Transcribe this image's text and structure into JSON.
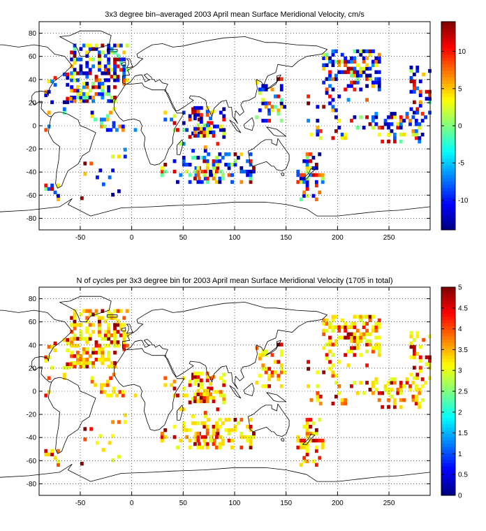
{
  "chart_data": [
    {
      "type": "heatmap",
      "title": "3x3 degree bin–averaged 2003 April mean Surface Meridional Velocity, cm/s",
      "xlabel": "",
      "ylabel": "",
      "xlim": [
        -90,
        290
      ],
      "ylim": [
        -90,
        90
      ],
      "xticks": [
        -50,
        0,
        50,
        100,
        150,
        200,
        250
      ],
      "yticks": [
        80,
        60,
        40,
        20,
        0,
        -20,
        -40,
        -60,
        -80
      ],
      "grid": true,
      "grid_style": "dotted",
      "bin_size_deg": 3,
      "colorbar": {
        "min": -14,
        "max": 14,
        "ticks": [
          10,
          5,
          0,
          -5,
          -10
        ],
        "colormap": "jet",
        "placement": "right"
      },
      "seed": 11,
      "regions": [
        {
          "lon": [
            -60,
            -5
          ],
          "lat": [
            20,
            70
          ],
          "density": 0.55
        },
        {
          "lon": [
            -85,
            -60
          ],
          "lat": [
            -5,
            45
          ],
          "density": 0.25
        },
        {
          "lon": [
            -40,
            10
          ],
          "lat": [
            -5,
            15
          ],
          "density": 0.3
        },
        {
          "lon": [
            -85,
            -70
          ],
          "lat": [
            -65,
            -50
          ],
          "density": 0.3
        },
        {
          "lon": [
            -50,
            -5
          ],
          "lat": [
            -70,
            -20
          ],
          "density": 0.06
        },
        {
          "lon": [
            25,
            90
          ],
          "lat": [
            -50,
            15
          ],
          "density": 0.18
        },
        {
          "lon": [
            60,
            120
          ],
          "lat": [
            -50,
            -25
          ],
          "density": 0.35
        },
        {
          "lon": [
            60,
            80
          ],
          "lat": [
            -10,
            15
          ],
          "density": 0.4
        },
        {
          "lon": [
            120,
            150
          ],
          "lat": [
            0,
            40
          ],
          "density": 0.25
        },
        {
          "lon": [
            160,
            185
          ],
          "lat": [
            -65,
            -25
          ],
          "density": 0.3
        },
        {
          "lon": [
            185,
            240
          ],
          "lat": [
            30,
            65
          ],
          "density": 0.45
        },
        {
          "lon": [
            170,
            230
          ],
          "lat": [
            -15,
            30
          ],
          "density": 0.15
        },
        {
          "lon": [
            230,
            285
          ],
          "lat": [
            -15,
            10
          ],
          "density": 0.25
        },
        {
          "lon": [
            270,
            290
          ],
          "lat": [
            10,
            50
          ],
          "density": 0.4
        }
      ]
    },
    {
      "type": "heatmap",
      "title": "N of cycles per 3x3 degree bin for 2003 April mean Surface Meridional Velocity (1705 in total)",
      "xlabel": "",
      "ylabel": "",
      "xlim": [
        -90,
        290
      ],
      "ylim": [
        -90,
        90
      ],
      "xticks": [
        -50,
        0,
        50,
        100,
        150,
        200,
        250
      ],
      "yticks": [
        80,
        60,
        40,
        20,
        0,
        -20,
        -40,
        -60,
        -80
      ],
      "grid": true,
      "grid_style": "dotted",
      "bin_size_deg": 3,
      "colorbar": {
        "min": 0,
        "max": 5,
        "ticks": [
          5,
          4.5,
          4,
          3.5,
          3,
          2.5,
          2,
          1.5,
          1,
          0.5,
          0
        ],
        "colormap": "jet",
        "placement": "right"
      },
      "seed": 11,
      "regions": [
        {
          "lon": [
            -60,
            -5
          ],
          "lat": [
            20,
            70
          ],
          "density": 0.55
        },
        {
          "lon": [
            -85,
            -60
          ],
          "lat": [
            -5,
            45
          ],
          "density": 0.25
        },
        {
          "lon": [
            -40,
            10
          ],
          "lat": [
            -5,
            15
          ],
          "density": 0.3
        },
        {
          "lon": [
            -85,
            -70
          ],
          "lat": [
            -65,
            -50
          ],
          "density": 0.3
        },
        {
          "lon": [
            -50,
            -5
          ],
          "lat": [
            -70,
            -20
          ],
          "density": 0.06
        },
        {
          "lon": [
            25,
            90
          ],
          "lat": [
            -50,
            15
          ],
          "density": 0.18
        },
        {
          "lon": [
            60,
            120
          ],
          "lat": [
            -50,
            -25
          ],
          "density": 0.35
        },
        {
          "lon": [
            60,
            80
          ],
          "lat": [
            -10,
            15
          ],
          "density": 0.4
        },
        {
          "lon": [
            120,
            150
          ],
          "lat": [
            0,
            40
          ],
          "density": 0.25
        },
        {
          "lon": [
            160,
            185
          ],
          "lat": [
            -65,
            -25
          ],
          "density": 0.3
        },
        {
          "lon": [
            185,
            240
          ],
          "lat": [
            30,
            65
          ],
          "density": 0.45
        },
        {
          "lon": [
            170,
            230
          ],
          "lat": [
            -15,
            30
          ],
          "density": 0.15
        },
        {
          "lon": [
            230,
            285
          ],
          "lat": [
            -15,
            10
          ],
          "density": 0.25
        },
        {
          "lon": [
            270,
            290
          ],
          "lat": [
            10,
            50
          ],
          "density": 0.4
        }
      ]
    }
  ],
  "coastlines": [
    [
      [
        -168,
        66
      ],
      [
        -160,
        70
      ],
      [
        -140,
        70
      ],
      [
        -125,
        70
      ],
      [
        -110,
        68
      ],
      [
        -95,
        70
      ],
      [
        -82,
        68
      ],
      [
        -75,
        62
      ],
      [
        -65,
        60
      ],
      [
        -58,
        52
      ],
      [
        -66,
        45
      ],
      [
        -70,
        42
      ],
      [
        -76,
        38
      ],
      [
        -80,
        32
      ],
      [
        -81,
        26
      ],
      [
        -82,
        29
      ],
      [
        -88,
        30
      ],
      [
        -94,
        29
      ],
      [
        -97,
        26
      ],
      [
        -97,
        21
      ],
      [
        -94,
        18
      ],
      [
        -90,
        21
      ],
      [
        -87,
        21
      ],
      [
        -88,
        15
      ],
      [
        -84,
        11
      ],
      [
        -80,
        8
      ],
      [
        -78,
        8
      ]
    ],
    [
      [
        -78,
        8
      ],
      [
        -75,
        11
      ],
      [
        -70,
        12
      ],
      [
        -62,
        10
      ],
      [
        -52,
        5
      ],
      [
        -50,
        0
      ],
      [
        -44,
        -2
      ],
      [
        -35,
        -6
      ],
      [
        -38,
        -13
      ],
      [
        -41,
        -22
      ],
      [
        -48,
        -26
      ],
      [
        -52,
        -33
      ],
      [
        -57,
        -36
      ],
      [
        -62,
        -39
      ],
      [
        -65,
        -45
      ],
      [
        -68,
        -52
      ],
      [
        -72,
        -54
      ],
      [
        -74,
        -50
      ],
      [
        -73,
        -40
      ],
      [
        -71,
        -30
      ],
      [
        -70,
        -18
      ],
      [
        -76,
        -14
      ],
      [
        -81,
        -6
      ],
      [
        -80,
        0
      ],
      [
        -79,
        5
      ],
      [
        -78,
        8
      ]
    ],
    [
      [
        -50,
        60
      ],
      [
        -44,
        60
      ],
      [
        -40,
        65
      ],
      [
        -22,
        70
      ],
      [
        -20,
        78
      ],
      [
        -30,
        82
      ],
      [
        -50,
        82
      ],
      [
        -60,
        78
      ],
      [
        -70,
        77
      ],
      [
        -55,
        70
      ],
      [
        -52,
        65
      ],
      [
        -50,
        60
      ]
    ],
    [
      [
        -17,
        21
      ],
      [
        -17,
        14
      ],
      [
        -15,
        11
      ],
      [
        -12,
        7
      ],
      [
        -8,
        4
      ],
      [
        -4,
        5
      ],
      [
        2,
        6
      ],
      [
        8,
        4
      ],
      [
        10,
        0
      ],
      [
        9,
        -4
      ],
      [
        13,
        -10
      ],
      [
        12,
        -17
      ],
      [
        15,
        -26
      ],
      [
        18,
        -33
      ],
      [
        22,
        -34
      ],
      [
        27,
        -33
      ],
      [
        32,
        -29
      ],
      [
        36,
        -20
      ],
      [
        40,
        -15
      ],
      [
        40,
        -10
      ],
      [
        42,
        -2
      ],
      [
        51,
        11
      ],
      [
        44,
        11
      ],
      [
        40,
        16
      ],
      [
        37,
        22
      ],
      [
        34,
        28
      ],
      [
        33,
        31
      ],
      [
        30,
        31
      ],
      [
        20,
        31
      ],
      [
        12,
        34
      ],
      [
        10,
        37
      ],
      [
        0,
        36
      ],
      [
        -6,
        36
      ],
      [
        -10,
        30
      ],
      [
        -17,
        21
      ]
    ],
    [
      [
        -9,
        37
      ],
      [
        -9,
        43
      ],
      [
        -2,
        44
      ],
      [
        -4,
        48
      ],
      [
        2,
        51
      ],
      [
        5,
        53
      ],
      [
        8,
        56
      ],
      [
        11,
        58
      ],
      [
        6,
        59
      ],
      [
        5,
        62
      ],
      [
        12,
        66
      ],
      [
        20,
        70
      ],
      [
        30,
        71
      ],
      [
        40,
        68
      ],
      [
        50,
        69
      ],
      [
        70,
        73
      ],
      [
        90,
        76
      ],
      [
        110,
        77
      ],
      [
        130,
        72
      ],
      [
        140,
        72
      ],
      [
        160,
        70
      ],
      [
        180,
        69
      ],
      [
        190,
        66
      ],
      [
        185,
        62
      ],
      [
        170,
        60
      ],
      [
        162,
        56
      ],
      [
        156,
        51
      ],
      [
        142,
        53
      ],
      [
        140,
        46
      ],
      [
        132,
        43
      ],
      [
        128,
        35
      ],
      [
        126,
        38
      ],
      [
        121,
        40
      ],
      [
        122,
        32
      ],
      [
        120,
        25
      ],
      [
        114,
        22
      ],
      [
        108,
        21
      ],
      [
        106,
        18
      ],
      [
        109,
        12
      ],
      [
        105,
        9
      ],
      [
        101,
        13
      ],
      [
        100,
        7
      ],
      [
        103,
        2
      ],
      [
        98,
        8
      ],
      [
        97,
        16
      ],
      [
        94,
        16
      ],
      [
        92,
        22
      ],
      [
        87,
        21
      ],
      [
        80,
        15
      ],
      [
        78,
        8
      ],
      [
        73,
        17
      ],
      [
        72,
        22
      ],
      [
        66,
        25
      ],
      [
        57,
        26
      ],
      [
        56,
        24
      ],
      [
        60,
        22
      ],
      [
        52,
        17
      ],
      [
        45,
        13
      ],
      [
        43,
        13
      ],
      [
        39,
        20
      ],
      [
        35,
        28
      ],
      [
        32,
        30
      ],
      [
        35,
        36
      ],
      [
        30,
        37
      ],
      [
        27,
        40
      ],
      [
        23,
        38
      ],
      [
        22,
        40
      ],
      [
        20,
        40
      ],
      [
        19,
        42
      ],
      [
        15,
        45
      ],
      [
        12,
        44
      ],
      [
        16,
        40
      ],
      [
        18,
        40
      ],
      [
        13,
        38
      ],
      [
        10,
        44
      ],
      [
        8,
        44
      ],
      [
        3,
        43
      ],
      [
        -1,
        38
      ],
      [
        -5,
        36
      ],
      [
        -9,
        37
      ]
    ],
    [
      [
        113,
        -22
      ],
      [
        114,
        -26
      ],
      [
        115,
        -33
      ],
      [
        118,
        -35
      ],
      [
        124,
        -33
      ],
      [
        131,
        -31
      ],
      [
        136,
        -35
      ],
      [
        138,
        -35
      ],
      [
        141,
        -38
      ],
      [
        146,
        -39
      ],
      [
        150,
        -37
      ],
      [
        153,
        -30
      ],
      [
        153,
        -25
      ],
      [
        149,
        -20
      ],
      [
        145,
        -15
      ],
      [
        142,
        -11
      ],
      [
        141,
        -17
      ],
      [
        136,
        -15
      ],
      [
        136,
        -12
      ],
      [
        130,
        -12
      ],
      [
        126,
        -14
      ],
      [
        122,
        -17
      ],
      [
        118,
        -20
      ],
      [
        113,
        -22
      ]
    ],
    [
      [
        -180,
        -70
      ],
      [
        -140,
        -75
      ],
      [
        -100,
        -73
      ],
      [
        -70,
        -70
      ],
      [
        -58,
        -63
      ],
      [
        -62,
        -68
      ],
      [
        -40,
        -78
      ],
      [
        -10,
        -71
      ],
      [
        20,
        -70
      ],
      [
        40,
        -69
      ],
      [
        70,
        -68
      ],
      [
        100,
        -66
      ],
      [
        130,
        -66
      ],
      [
        150,
        -68
      ],
      [
        170,
        -72
      ],
      [
        180,
        -78
      ],
      [
        200,
        -78
      ],
      [
        220,
        -76
      ],
      [
        240,
        -74
      ],
      [
        260,
        -73
      ],
      [
        290,
        -70
      ]
    ],
    [
      [
        -5,
        50
      ],
      [
        -3,
        53
      ],
      [
        -3,
        56
      ],
      [
        -5,
        58
      ],
      [
        -2,
        58
      ],
      [
        0,
        53
      ],
      [
        1,
        51
      ],
      [
        -5,
        50
      ]
    ],
    [
      [
        -10,
        52
      ],
      [
        -6,
        52
      ],
      [
        -6,
        55
      ],
      [
        -10,
        54
      ],
      [
        -10,
        52
      ]
    ],
    [
      [
        -24,
        64
      ],
      [
        -14,
        64
      ],
      [
        -14,
        66
      ],
      [
        -24,
        66
      ],
      [
        -24,
        64
      ]
    ],
    [
      [
        44,
        -25
      ],
      [
        47,
        -25
      ],
      [
        50,
        -15
      ],
      [
        49,
        -12
      ],
      [
        44,
        -17
      ],
      [
        44,
        -25
      ]
    ],
    [
      [
        95,
        5
      ],
      [
        100,
        2
      ],
      [
        106,
        -6
      ],
      [
        102,
        -4
      ],
      [
        95,
        5
      ]
    ],
    [
      [
        109,
        1
      ],
      [
        110,
        -2
      ],
      [
        117,
        -4
      ],
      [
        119,
        2
      ],
      [
        117,
        7
      ],
      [
        113,
        4
      ],
      [
        109,
        1
      ]
    ],
    [
      [
        131,
        -1
      ],
      [
        141,
        -3
      ],
      [
        150,
        -9
      ],
      [
        142,
        -9
      ],
      [
        138,
        -8
      ],
      [
        131,
        -1
      ]
    ],
    [
      [
        130,
        31
      ],
      [
        135,
        34
      ],
      [
        141,
        38
      ],
      [
        141,
        43
      ],
      [
        145,
        44
      ],
      [
        140,
        36
      ],
      [
        135,
        33
      ],
      [
        130,
        31
      ]
    ],
    [
      [
        166,
        -46
      ],
      [
        172,
        -41
      ],
      [
        174,
        -37
      ],
      [
        178,
        -38
      ],
      [
        174,
        -41
      ],
      [
        170,
        -46
      ],
      [
        166,
        -46
      ]
    ],
    [
      [
        145,
        -41
      ],
      [
        148,
        -41
      ],
      [
        148,
        -43
      ],
      [
        146,
        -43
      ],
      [
        145,
        -41
      ]
    ]
  ]
}
